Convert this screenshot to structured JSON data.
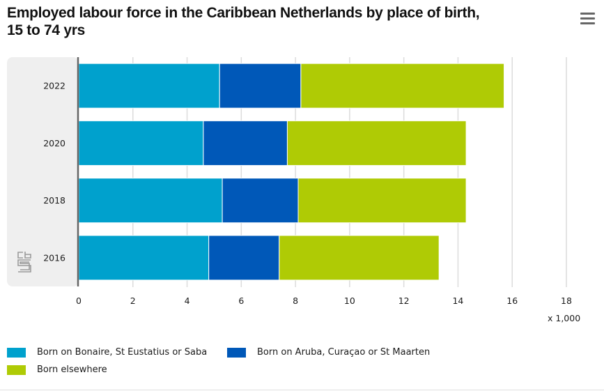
{
  "title": {
    "line1": "Employed labour force in the Caribbean Netherlands by place of birth,",
    "line2": "15 to 74 yrs"
  },
  "menu": {
    "icon": "hamburger-menu-icon"
  },
  "logo": {
    "icon": "cbs-logo-icon"
  },
  "unit_label": "x 1,000",
  "chart_data": {
    "type": "bar",
    "orientation": "horizontal",
    "stacked": true,
    "title": "Employed labour force in the Caribbean Netherlands by place of birth, 15 to 74 yrs",
    "xlabel": "x 1,000",
    "ylabel": "",
    "categories": [
      "2022",
      "2020",
      "2018",
      "2016"
    ],
    "series": [
      {
        "name": "Born on Bonaire, St Eustatius or Saba",
        "color": "#00a1cd",
        "values": [
          5.2,
          4.6,
          5.3,
          4.8
        ]
      },
      {
        "name": "Born on Aruba, Curaçao or St Maarten",
        "color": "#0058b8",
        "values": [
          3.0,
          3.1,
          2.8,
          2.6
        ]
      },
      {
        "name": "Born elsewhere",
        "color": "#afcb05",
        "values": [
          7.5,
          6.6,
          6.2,
          5.9
        ]
      }
    ],
    "xlim": [
      0,
      18
    ],
    "xticks": [
      0,
      2,
      4,
      6,
      8,
      10,
      12,
      14,
      16,
      18
    ],
    "grid": true,
    "legend": "bottom-left"
  }
}
